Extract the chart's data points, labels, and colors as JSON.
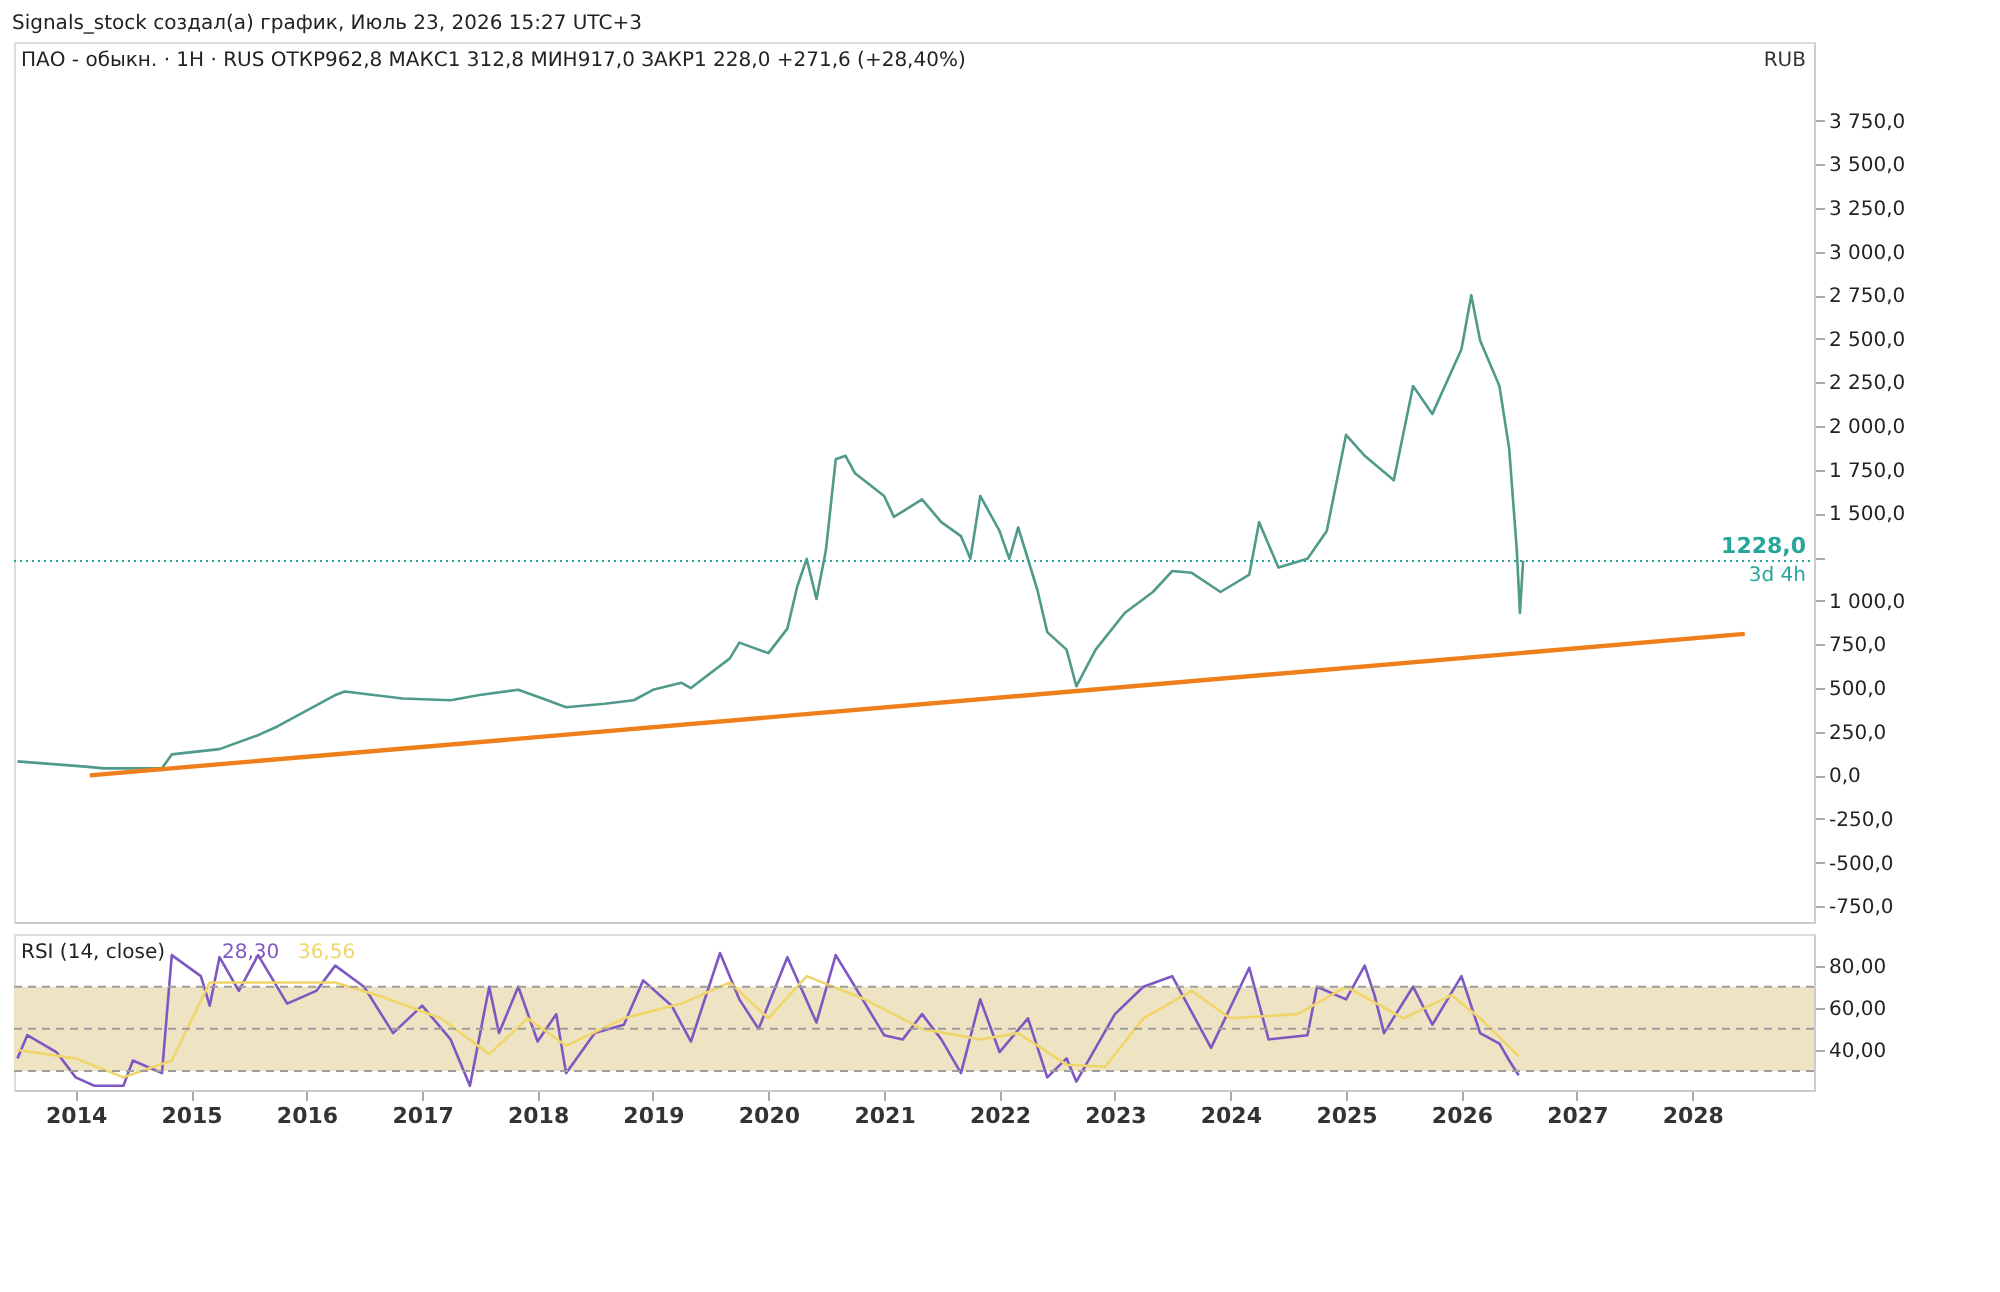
{
  "chart_data": [
    {
      "type": "line",
      "title": "ПАО - обыкн. · 1H · RUS  ОТКР962,8  МАКС1 312,8  МИН917,0  ЗАКР1 228,0  +271,6 (+28,40%)",
      "annotations": [
        "Signals_stock создал(а) график, Июль 23, 2026 15:27 UTC+3",
        "RUB",
        "3d 4h"
      ],
      "series": [
        {
          "color": "#4f9a8a",
          "x": [
            "2013-07",
            "2014-02",
            "2014-04",
            "2014-10",
            "2014-11",
            "2015-04",
            "2015-08",
            "2015-10",
            "2016-01",
            "2016-04",
            "2016-05",
            "2016-11",
            "2017-04",
            "2017-07",
            "2017-11",
            "2018-02",
            "2018-04",
            "2018-08",
            "2018-11",
            "2019-01",
            "2019-04",
            "2019-05",
            "2019-09",
            "2019-10",
            "2020-01",
            "2020-03",
            "2020-04",
            "2020-05",
            "2020-06",
            "2020-07",
            "2020-08",
            "2020-09",
            "2020-10",
            "2021-01",
            "2021-02",
            "2021-05",
            "2021-07",
            "2021-09",
            "2021-10",
            "2021-11",
            "2022-01",
            "2022-02",
            "2022-03",
            "2022-05",
            "2022-06",
            "2022-08",
            "2022-09",
            "2022-11",
            "2023-02",
            "2023-05",
            "2023-07",
            "2023-09",
            "2023-12",
            "2024-03",
            "2024-04",
            "2024-06",
            "2024-09",
            "2024-11",
            "2025-01",
            "2025-03",
            "2025-06",
            "2025-08",
            "2025-10",
            "2026-01",
            "2026-02",
            "2026-03",
            "2026-05",
            "2026-06",
            "2026-06-25",
            "2026-07-05",
            "2026-07-15"
          ],
          "values": [
            80,
            50,
            40,
            40,
            120,
            150,
            230,
            280,
            370,
            460,
            480,
            440,
            430,
            460,
            490,
            430,
            390,
            410,
            430,
            490,
            530,
            500,
            670,
            760,
            700,
            840,
            1080,
            1240,
            1010,
            1290,
            1810,
            1830,
            1730,
            1600,
            1480,
            1580,
            1450,
            1370,
            1240,
            1600,
            1400,
            1240,
            1420,
            1060,
            820,
            720,
            510,
            720,
            930,
            1050,
            1170,
            1160,
            1050,
            1150,
            1450,
            1190,
            1240,
            1400,
            1950,
            1830,
            1690,
            2230,
            2070,
            2440,
            2750,
            2490,
            2230,
            1870,
            1290,
            930,
            1230
          ]
        },
        {
          "color": "#ef7f1a",
          "x": [
            "2014-02-15",
            "2028-06-15"
          ],
          "values": [
            0,
            810
          ]
        }
      ],
      "ref_lines": [
        {
          "axis": "y",
          "value": 1228,
          "label": "1228,0",
          "color": "#26a69a",
          "line_style": "dotted"
        }
      ],
      "xlim": [
        "2013-06-20",
        "2029-01-20"
      ],
      "xticks": [
        "2014",
        "2015",
        "2016",
        "2017",
        "2018",
        "2019",
        "2020",
        "2021",
        "2022",
        "2023",
        "2024",
        "2025",
        "2026",
        "2027",
        "2028"
      ],
      "ylim": [
        -840,
        4200
      ],
      "yticks": [
        {
          "value": -750,
          "label": "-750,0"
        },
        {
          "value": -500,
          "label": "-500,0"
        },
        {
          "value": -250,
          "label": "-250,0"
        },
        {
          "value": 0,
          "label": "0,0"
        },
        {
          "value": 250,
          "label": "250,0"
        },
        {
          "value": 500,
          "label": "500,0"
        },
        {
          "value": 750,
          "label": "750,0"
        },
        {
          "value": 1000,
          "label": "1 000,0"
        },
        {
          "value": 1250,
          "label": null
        },
        {
          "value": 1500,
          "label": "1 500,0"
        },
        {
          "value": 1750,
          "label": "1 750,0"
        },
        {
          "value": 2000,
          "label": "2 000,0"
        },
        {
          "value": 2250,
          "label": "2 250,0"
        },
        {
          "value": 2500,
          "label": "2 500,0"
        },
        {
          "value": 2750,
          "label": "2 750,0"
        },
        {
          "value": 3000,
          "label": "3 000,0"
        },
        {
          "value": 3250,
          "label": "3 250,0"
        },
        {
          "value": 3500,
          "label": "3 500,0"
        },
        {
          "value": 3750,
          "label": "3 750,0"
        }
      ],
      "tick_labels": "y",
      "grid": false,
      "line_style": "solid"
    },
    {
      "type": "line",
      "title": "RSI (14, close)",
      "annotations": [
        "28,30",
        "36,56"
      ],
      "series": [
        {
          "color": "#7e57c2",
          "x": [
            "2013-07",
            "2013-08",
            "2013-11",
            "2014-01",
            "2014-03",
            "2014-06",
            "2014-07",
            "2014-10",
            "2014-11",
            "2015-02",
            "2015-03",
            "2015-04",
            "2015-06",
            "2015-08",
            "2015-11",
            "2016-02",
            "2016-04",
            "2016-07",
            "2016-10",
            "2017-01",
            "2017-04",
            "2017-06",
            "2017-08",
            "2017-09",
            "2017-11",
            "2018-01",
            "2018-03",
            "2018-04",
            "2018-07",
            "2018-10",
            "2018-12",
            "2019-03",
            "2019-05",
            "2019-08",
            "2019-10",
            "2019-12",
            "2020-03",
            "2020-06",
            "2020-08",
            "2020-10",
            "2021-01",
            "2021-03",
            "2021-05",
            "2021-07",
            "2021-09",
            "2021-11",
            "2022-01",
            "2022-04",
            "2022-06",
            "2022-08",
            "2022-09",
            "2023-01",
            "2023-04",
            "2023-07",
            "2023-11",
            "2024-03",
            "2024-05",
            "2024-09",
            "2024-10",
            "2025-01",
            "2025-03",
            "2025-04",
            "2025-05",
            "2025-08",
            "2025-10",
            "2026-01",
            "2026-03",
            "2026-05",
            "2026-06",
            "2026-07"
          ],
          "values": [
            36,
            47,
            39,
            27,
            23,
            23,
            35,
            29,
            85,
            75,
            61,
            84,
            68,
            85,
            62,
            68,
            80,
            70,
            48,
            61,
            45,
            23,
            70,
            48,
            70,
            44,
            57,
            29,
            48,
            52,
            73,
            61,
            44,
            86,
            64,
            50,
            84,
            53,
            85,
            70,
            47,
            45,
            57,
            45,
            29,
            64,
            39,
            55,
            27,
            36,
            25,
            57,
            70,
            75,
            41,
            79,
            45,
            47,
            70,
            64,
            80,
            66,
            48,
            70,
            52,
            75,
            48,
            43,
            35,
            28
          ]
        },
        {
          "color": "#f0d66a",
          "x": [
            "2013-07",
            "2014-01",
            "2014-06",
            "2014-11",
            "2015-03",
            "2015-09",
            "2016-04",
            "2016-09",
            "2017-03",
            "2017-08",
            "2017-12",
            "2018-04",
            "2018-10",
            "2019-04",
            "2019-09",
            "2020-01",
            "2020-05",
            "2020-11",
            "2021-05",
            "2021-11",
            "2022-03",
            "2022-08",
            "2022-12",
            "2023-04",
            "2023-09",
            "2024-01",
            "2024-08",
            "2025-01",
            "2025-07",
            "2025-12",
            "2026-03",
            "2026-07"
          ],
          "values": [
            40,
            36,
            27,
            35,
            72,
            72,
            72,
            65,
            55,
            38,
            55,
            42,
            55,
            62,
            72,
            55,
            75,
            64,
            50,
            45,
            48,
            33,
            32,
            55,
            68,
            55,
            57,
            70,
            55,
            66,
            55,
            37
          ]
        }
      ],
      "bands": [
        {
          "axis": "y",
          "from": 30,
          "to": 70,
          "color": "#ece0bd"
        }
      ],
      "ref_lines": [
        {
          "axis": "y",
          "value": 70,
          "color": "#9e9e9e",
          "line_style": "dashed"
        },
        {
          "axis": "y",
          "value": 50,
          "color": "#9e9e9e",
          "line_style": "dashed"
        },
        {
          "axis": "y",
          "value": 30,
          "color": "#9e9e9e",
          "line_style": "dashed"
        }
      ],
      "xlim": [
        "2013-06-20",
        "2029-01-20"
      ],
      "xticks": [
        "2014",
        "2015",
        "2016",
        "2017",
        "2018",
        "2019",
        "2020",
        "2021",
        "2022",
        "2023",
        "2024",
        "2025",
        "2026",
        "2027",
        "2028"
      ],
      "ylim": [
        21,
        95
      ],
      "yticks": [
        {
          "value": 40,
          "label": "40,00"
        },
        {
          "value": 60,
          "label": "60,00"
        },
        {
          "value": 80,
          "label": "80,00"
        }
      ],
      "grid": false,
      "line_style": "solid"
    }
  ]
}
